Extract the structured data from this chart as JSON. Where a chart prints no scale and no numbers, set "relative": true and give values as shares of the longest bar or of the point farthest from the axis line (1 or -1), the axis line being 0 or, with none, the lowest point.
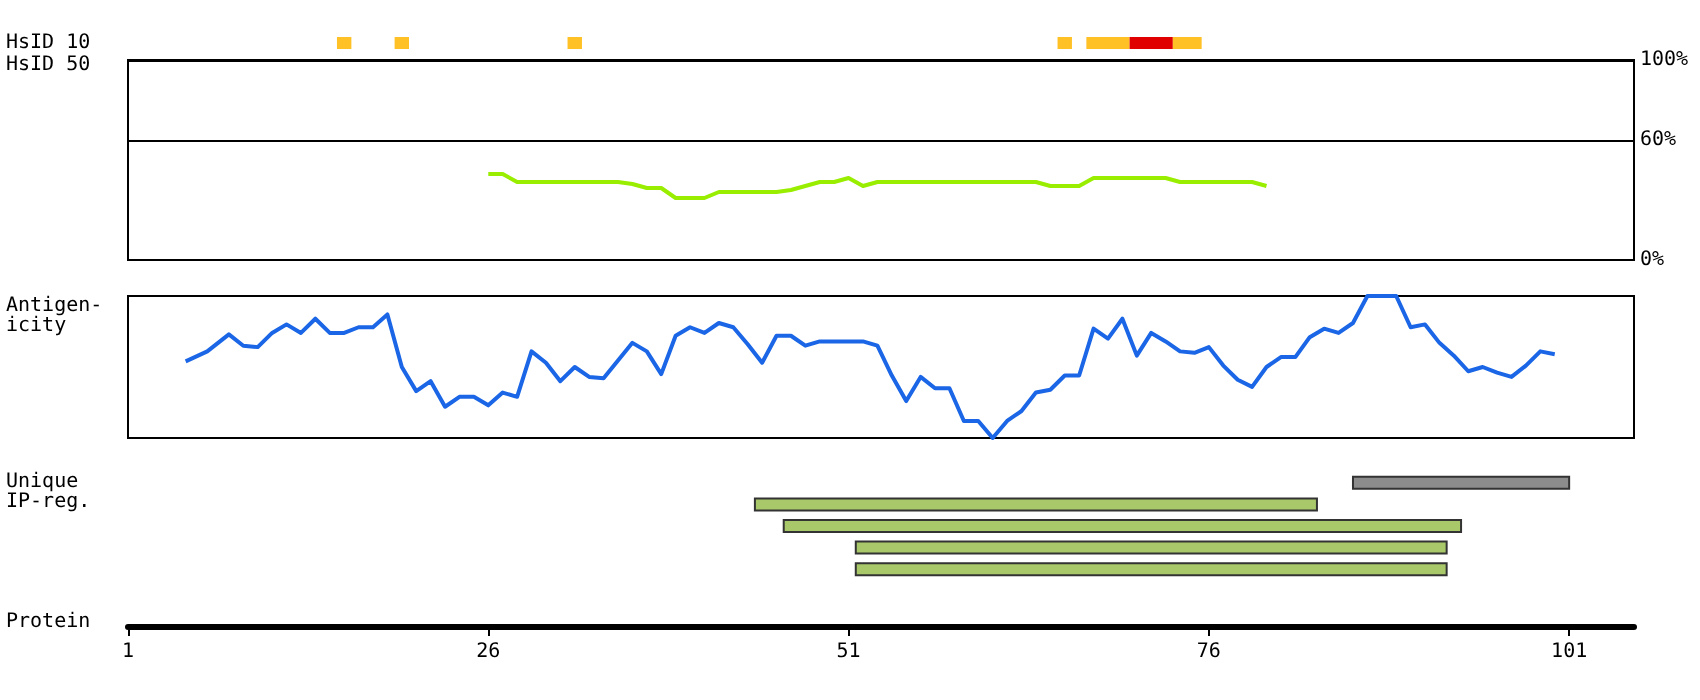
{
  "chart_data": [
    {
      "type": "bar",
      "orientation": "horizontal",
      "categories": [
        "HsID 10",
        "HsID 50"
      ],
      "xlim": [
        1,
        105.5
      ],
      "tick_labels": "y",
      "series": [
        {
          "color": "#ffc125",
          "base": [
            15.5,
            null
          ],
          "values": [
            1,
            null
          ]
        },
        {
          "color": "#ffc125",
          "base": [
            19.5,
            null
          ],
          "values": [
            1,
            null
          ]
        },
        {
          "color": "#ffc125",
          "base": [
            31.5,
            null
          ],
          "values": [
            1,
            null
          ]
        },
        {
          "color": "#ffc125",
          "base": [
            65.5,
            null
          ],
          "values": [
            1,
            null
          ]
        },
        {
          "color": "#ffc125",
          "base": [
            67.5,
            null
          ],
          "values": [
            3,
            null
          ]
        },
        {
          "color": "#e00000",
          "base": [
            70.5,
            null
          ],
          "values": [
            3,
            null
          ]
        },
        {
          "color": "#ffc125",
          "base": [
            73.5,
            null
          ],
          "values": [
            2,
            null
          ]
        }
      ]
    },
    {
      "type": "line",
      "xlim": [
        1,
        105.5
      ],
      "ylim": [
        0,
        100
      ],
      "yticks": [
        {
          "value": 0,
          "label": "0%"
        },
        {
          "value": 60,
          "label": "60%"
        },
        {
          "value": 100,
          "label": "100%"
        }
      ],
      "tick_labels": "y",
      "ref_lines": [
        {
          "axis": "y",
          "value": 60,
          "color": "#000000"
        }
      ],
      "series": [
        {
          "color": "#99ee00",
          "x": [
            26,
            27,
            28,
            35,
            36,
            37,
            38,
            39,
            41,
            42,
            46,
            47,
            48,
            49,
            50,
            51,
            52,
            53,
            64,
            65,
            67,
            68,
            73,
            74,
            79,
            80
          ],
          "values": [
            43,
            43,
            39,
            39,
            38,
            36,
            36,
            31,
            31,
            34,
            34,
            35,
            37,
            39,
            39,
            41,
            37,
            39,
            39,
            37,
            37,
            41,
            41,
            39,
            39,
            37
          ]
        }
      ]
    },
    {
      "type": "line",
      "relative": true,
      "ylabel": "Antigen-\nicity",
      "xlim": [
        1,
        105.5
      ],
      "tick_labels": false,
      "series": [
        {
          "color": "#1a66e6",
          "x": [
            5,
            6.5,
            8,
            9,
            10,
            11,
            12,
            13,
            14,
            15,
            16,
            17,
            18,
            19,
            20,
            21,
            22,
            23,
            24,
            25,
            26,
            27,
            28,
            29,
            30,
            31,
            32,
            33,
            34,
            36,
            37,
            38,
            39,
            40,
            41,
            42,
            43,
            44,
            45,
            46,
            47,
            48,
            49,
            52,
            53,
            54,
            55,
            56,
            57,
            58,
            59,
            60,
            61,
            62,
            63,
            64,
            65,
            66,
            67,
            68,
            69,
            70,
            71,
            72,
            73,
            74,
            75,
            76,
            77,
            78,
            79,
            80,
            81,
            82,
            83,
            84,
            85,
            86,
            87,
            89,
            90,
            91,
            92,
            93,
            94,
            95,
            96,
            97,
            98,
            99,
            100
          ],
          "values": [
            0.54,
            0.61,
            0.73,
            0.65,
            0.64,
            0.74,
            0.8,
            0.74,
            0.84,
            0.74,
            0.74,
            0.78,
            0.78,
            0.87,
            0.5,
            0.33,
            0.4,
            0.22,
            0.29,
            0.29,
            0.23,
            0.32,
            0.29,
            0.61,
            0.53,
            0.4,
            0.5,
            0.43,
            0.42,
            0.67,
            0.61,
            0.45,
            0.72,
            0.78,
            0.74,
            0.81,
            0.78,
            0.66,
            0.53,
            0.72,
            0.72,
            0.65,
            0.68,
            0.68,
            0.65,
            0.44,
            0.26,
            0.43,
            0.35,
            0.35,
            0.12,
            0.12,
            0,
            0.12,
            0.19,
            0.32,
            0.34,
            0.44,
            0.44,
            0.77,
            0.7,
            0.84,
            0.58,
            0.74,
            0.68,
            0.61,
            0.6,
            0.64,
            0.51,
            0.41,
            0.36,
            0.5,
            0.57,
            0.57,
            0.71,
            0.77,
            0.74,
            0.81,
            1,
            1,
            0.78,
            0.8,
            0.67,
            0.58,
            0.47,
            0.5,
            0.46,
            0.43,
            0.51,
            0.61,
            0.59
          ]
        }
      ]
    },
    {
      "type": "bar",
      "orientation": "horizontal",
      "ylabel": "Unique\nIP-reg.",
      "xlabel": "Protein",
      "categories": [
        null,
        null,
        null,
        null,
        null
      ],
      "xlim": [
        1,
        105.5
      ],
      "xticks": [
        1,
        26,
        51,
        76,
        101
      ],
      "tick_labels": "x",
      "series": [
        {
          "base": [
            86,
            44.5,
            46.5,
            51.5,
            51.5
          ],
          "values": [
            15,
            39,
            47,
            41,
            41
          ],
          "colors": [
            "#8c8c8c",
            "#a8c86a",
            "#a8c86a",
            "#a8c86a",
            "#a8c86a"
          ]
        }
      ]
    }
  ]
}
